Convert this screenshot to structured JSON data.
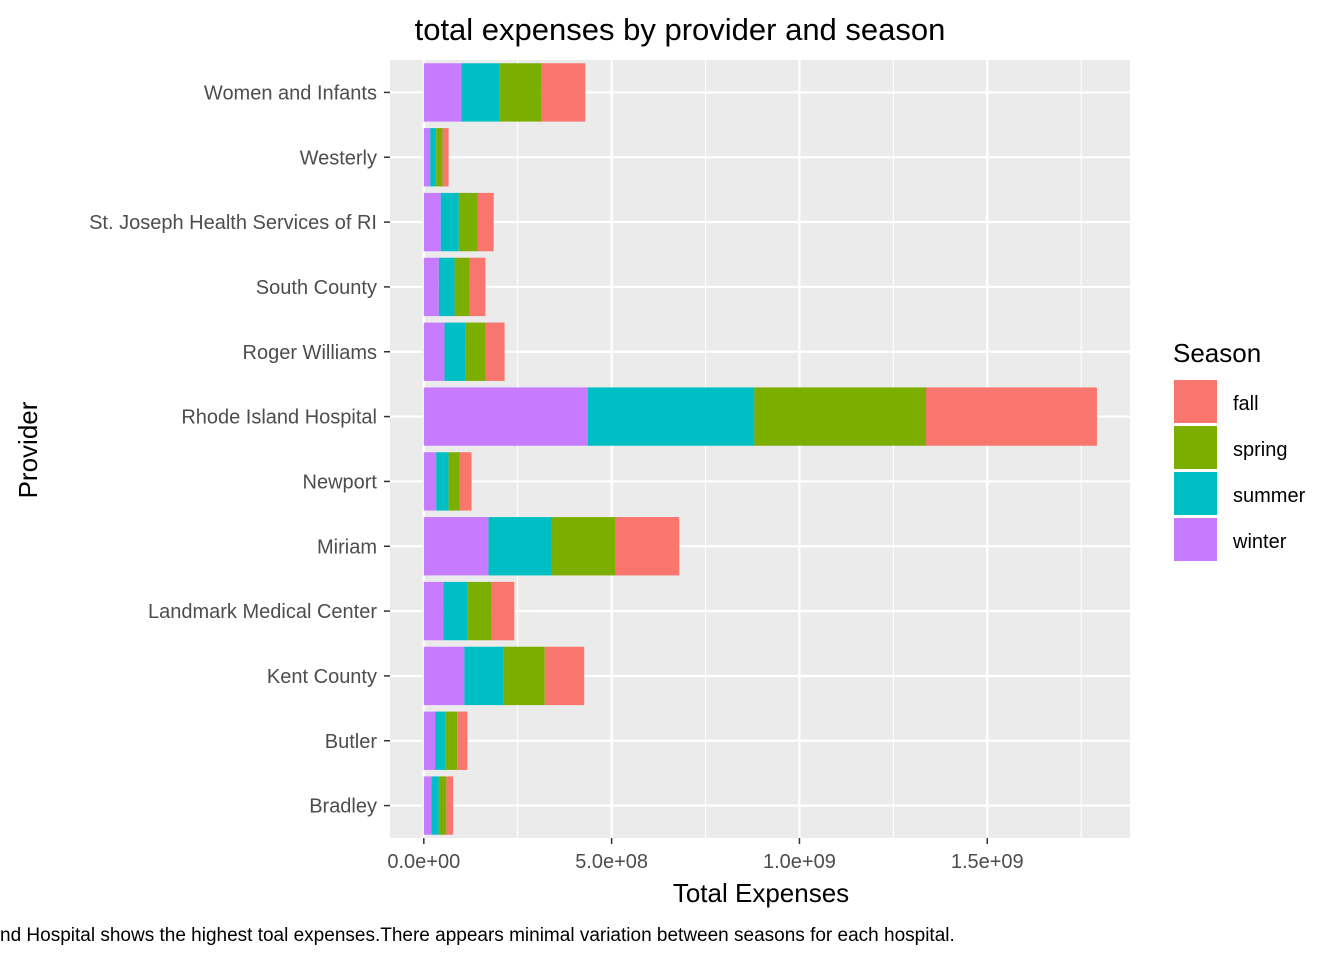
{
  "chart_data": {
    "type": "bar",
    "orientation": "horizontal",
    "stacked": true,
    "title": "total expenses by provider and season",
    "xlabel": "Total Expenses",
    "ylabel": "Provider",
    "caption": "nd Hospital shows the highest toal expenses.There appears minimal variation between seasons for each hospital.",
    "xlim": [
      -90000000,
      1880000000
    ],
    "x_ticks": [
      0,
      500000000,
      1000000000,
      1500000000
    ],
    "x_tick_labels": [
      "0.0e+00",
      "5.0e+08",
      "1.0e+09",
      "1.5e+09"
    ],
    "grid": true,
    "legend": {
      "title": "Season",
      "position": "right",
      "entries": [
        "fall",
        "spring",
        "summer",
        "winter"
      ]
    },
    "colors": {
      "winter": "#C77CFF",
      "summer": "#00BFC4",
      "spring": "#7CAE00",
      "fall": "#F8766D",
      "panel": "#EBEBEB",
      "grid": "#FFFFFF"
    },
    "stack_order": [
      "winter",
      "summer",
      "spring",
      "fall"
    ],
    "categories": [
      "Women and Infants",
      "Westerly",
      "St. Joseph Health Services of RI",
      "South County",
      "Roger Williams",
      "Rhode Island Hospital",
      "Newport",
      "Miriam",
      "Landmark Medical Center",
      "Kent County",
      "Butler",
      "Bradley"
    ],
    "series": [
      {
        "name": "winter",
        "values": [
          100000000,
          17000000,
          45000000,
          40000000,
          55000000,
          437000000,
          33000000,
          172000000,
          52000000,
          108000000,
          30000000,
          20000000
        ]
      },
      {
        "name": "summer",
        "values": [
          102000000,
          16000000,
          48000000,
          42000000,
          55000000,
          443000000,
          33000000,
          168000000,
          65000000,
          103000000,
          27000000,
          20000000
        ]
      },
      {
        "name": "spring",
        "values": [
          112000000,
          17000000,
          50000000,
          40000000,
          54000000,
          457000000,
          30000000,
          171000000,
          63000000,
          111000000,
          32000000,
          20000000
        ]
      },
      {
        "name": "fall",
        "values": [
          116000000,
          16000000,
          43000000,
          42000000,
          51000000,
          455000000,
          31000000,
          169000000,
          61000000,
          105000000,
          27000000,
          18000000
        ]
      }
    ]
  }
}
